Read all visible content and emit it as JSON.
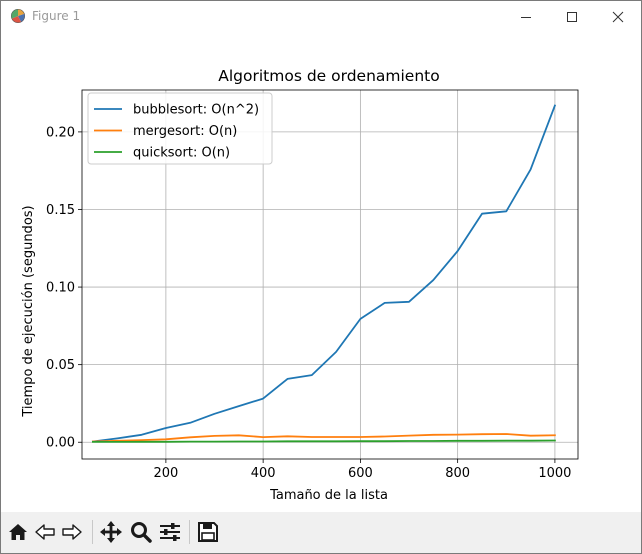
{
  "window": {
    "title": "Figure 1",
    "icon": "matplotlib-figure-icon"
  },
  "toolbar": {
    "buttons": [
      {
        "name": "home-icon",
        "label": "Home"
      },
      {
        "name": "back-arrow-icon",
        "label": "Back"
      },
      {
        "name": "forward-arrow-icon",
        "label": "Forward"
      },
      {
        "name": "pan-move-icon",
        "label": "Pan"
      },
      {
        "name": "zoom-magnifier-icon",
        "label": "Zoom"
      },
      {
        "name": "configure-subplots-icon",
        "label": "Subplots"
      },
      {
        "name": "save-floppy-icon",
        "label": "Save"
      }
    ]
  },
  "chart_data": {
    "type": "line",
    "title": "Algoritmos de ordenamiento",
    "xlabel": "Tamaño de la lista",
    "ylabel": "Tiempo de ejecución (segundos)",
    "xlim": [
      27.5,
      1047.5
    ],
    "ylim": [
      -0.0108,
      0.227
    ],
    "xticks": [
      200,
      400,
      600,
      800,
      1000
    ],
    "yticks": [
      0.0,
      0.05,
      0.1,
      0.15,
      0.2
    ],
    "ytick_labels": [
      "0.00",
      "0.05",
      "0.10",
      "0.15",
      "0.20"
    ],
    "grid": true,
    "legend_position": "upper left",
    "x": [
      50,
      100,
      150,
      200,
      250,
      300,
      350,
      400,
      450,
      500,
      550,
      600,
      650,
      700,
      750,
      800,
      850,
      900,
      950,
      1000
    ],
    "series": [
      {
        "name": "bubblesort: O(n^2)",
        "color": "#1f77b4",
        "values": [
          0.0005,
          0.0025,
          0.0048,
          0.0092,
          0.0125,
          0.0183,
          0.0233,
          0.0281,
          0.0408,
          0.0433,
          0.0582,
          0.0795,
          0.0898,
          0.0905,
          0.1045,
          0.1232,
          0.1473,
          0.1488,
          0.1758,
          0.217
        ]
      },
      {
        "name": "mergesort: O(n)",
        "color": "#ff7f0e",
        "values": [
          0.0005,
          0.0009,
          0.0014,
          0.0019,
          0.0032,
          0.0041,
          0.0045,
          0.0033,
          0.0038,
          0.0034,
          0.0034,
          0.0034,
          0.0037,
          0.0043,
          0.0048,
          0.0049,
          0.0052,
          0.0053,
          0.0042,
          0.0045
        ]
      },
      {
        "name": "quicksort: O(n)",
        "color": "#2ca02c",
        "values": [
          0.0002,
          0.0002,
          0.0003,
          0.0003,
          0.0004,
          0.0004,
          0.0005,
          0.0005,
          0.0006,
          0.0006,
          0.0006,
          0.0007,
          0.0007,
          0.0008,
          0.0008,
          0.0009,
          0.0009,
          0.001,
          0.001,
          0.0011
        ]
      }
    ]
  }
}
